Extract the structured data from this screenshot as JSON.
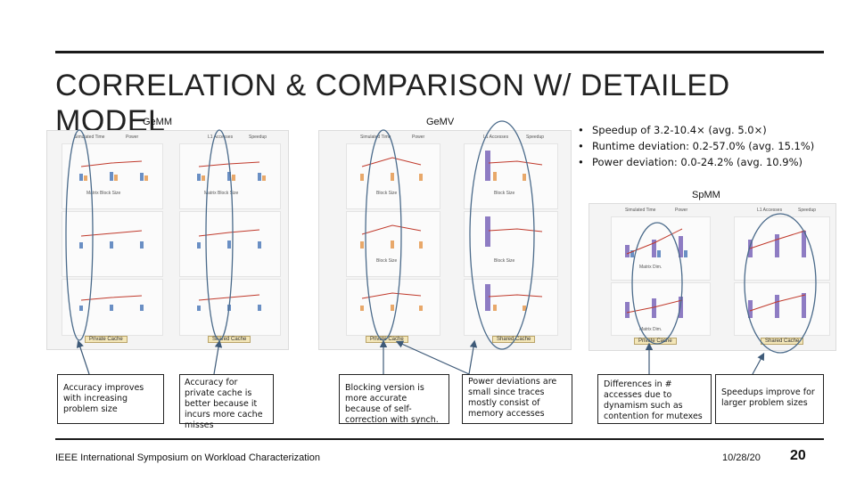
{
  "slide": {
    "title": "CORRELATION & COMPARISON W/ DETAILED MODEL",
    "page_number": "20",
    "footer": "IEEE International Symposium on Workload Characterization",
    "date": "10/28/20"
  },
  "sections": {
    "gemm_label": "GeMM",
    "gemv_label": "GeMV",
    "spmm_label": "SpMM"
  },
  "bullets": [
    "Speedup of 3.2-10.4× (avg. 5.0×)",
    "Runtime deviation: 0.2-57.0% (avg. 15.1%)",
    "Power deviation: 0.0-24.2% (avg. 10.9%)"
  ],
  "chart_text": {
    "private_cache": "Private Cache",
    "shared_cache": "Shared Cache",
    "simulated_time": "Simulated Time",
    "power": "Power",
    "l1_accesses": "L1 Accesses",
    "speedup": "Speedup",
    "deviation": "Deviation",
    "matrix_block_size": "Matrix Block Size",
    "block_size": "Block Size",
    "matrix_dim": "Matrix Dim."
  },
  "notes": {
    "n1": "Accuracy improves with increasing problem size",
    "n2": "Accuracy for private cache is better because it incurs more cache misses",
    "n3": "Blocking version is more accurate because of self-correction with synch.",
    "n4": "Power deviations are small since traces mostly consist of memory accesses",
    "n5": "Differences in # accesses due to dynamism such as contention for mutexes",
    "n6": "Speedups improve for larger problem sizes"
  },
  "colors": {
    "bar_blue": "#6a8fc4",
    "bar_purple": "#8e7cc3",
    "bar_orange": "#e8a86a",
    "speedup_line": "#c0392b",
    "ellipse_stroke": "#4a6a8a"
  }
}
